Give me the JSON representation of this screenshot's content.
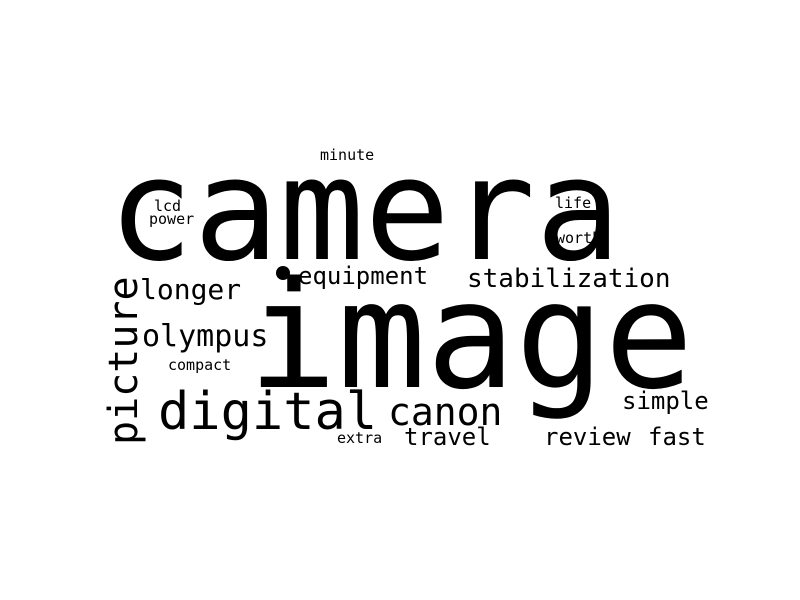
{
  "word_cloud": {
    "background_color": "#ffffff",
    "text_color": "#000000",
    "words": [
      {
        "text": "camera",
        "orientation": "horizontal"
      },
      {
        "text": "image",
        "orientation": "horizontal"
      },
      {
        "text": "digital",
        "orientation": "horizontal"
      },
      {
        "text": "canon",
        "orientation": "horizontal"
      },
      {
        "text": "picture",
        "orientation": "vertical"
      },
      {
        "text": "olympus",
        "orientation": "horizontal"
      },
      {
        "text": "longer",
        "orientation": "horizontal"
      },
      {
        "text": "stabilization",
        "orientation": "horizontal"
      },
      {
        "text": "equipment",
        "orientation": "horizontal"
      },
      {
        "text": "travel",
        "orientation": "horizontal"
      },
      {
        "text": "review",
        "orientation": "horizontal"
      },
      {
        "text": "fast",
        "orientation": "horizontal"
      },
      {
        "text": "simple",
        "orientation": "horizontal"
      },
      {
        "text": "minute",
        "orientation": "horizontal"
      },
      {
        "text": "lcd",
        "orientation": "horizontal"
      },
      {
        "text": "power",
        "orientation": "horizontal"
      },
      {
        "text": "life",
        "orientation": "horizontal"
      },
      {
        "text": "worth",
        "orientation": "horizontal"
      },
      {
        "text": "compact",
        "orientation": "horizontal"
      },
      {
        "text": "extra",
        "orientation": "horizontal"
      }
    ]
  }
}
